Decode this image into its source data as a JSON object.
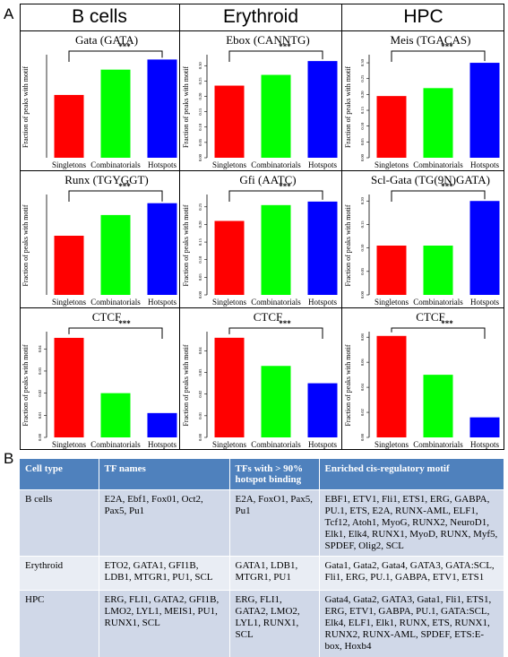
{
  "panel_a_label": "A",
  "panel_b_label": "B",
  "columns": [
    "B cells",
    "Erythroid",
    "HPC"
  ],
  "chart_data": [
    {
      "type": "bar",
      "title": "Gata (GATA)",
      "ylabel": "Fraction of peaks with motif",
      "categories": [
        "Singletons",
        "Combinatorials",
        "Hotspots"
      ],
      "values": [
        0.62,
        0.87,
        0.97
      ],
      "ylim": [
        0,
        1
      ],
      "colors": [
        "#ff0000",
        "#00ff00",
        "#0000ff"
      ],
      "significance": "***",
      "tick_labels": []
    },
    {
      "type": "bar",
      "title": "Ebox (CANNTG)",
      "ylabel": "Fraction of peaks with motif",
      "categories": [
        "Singletons",
        "Combinatorials",
        "Hotspots"
      ],
      "values": [
        0.235,
        0.27,
        0.315
      ],
      "ylim": [
        0,
        0.33
      ],
      "colors": [
        "#ff0000",
        "#00ff00",
        "#0000ff"
      ],
      "significance": "***",
      "tick_labels": [
        "0.00",
        "0.05",
        "0.10",
        "0.15",
        "0.20",
        "0.25",
        "0.30"
      ]
    },
    {
      "type": "bar",
      "title": "Meis (TGACAS)",
      "ylabel": "Fraction of peaks with motif",
      "categories": [
        "Singletons",
        "Combinatorials",
        "Hotspots"
      ],
      "values": [
        0.195,
        0.22,
        0.3
      ],
      "ylim": [
        0,
        0.32
      ],
      "colors": [
        "#ff0000",
        "#00ff00",
        "#0000ff"
      ],
      "significance": "***",
      "tick_labels": [
        "0.00",
        "0.05",
        "0.10",
        "0.15",
        "0.20",
        "0.25",
        "0.30"
      ]
    },
    {
      "type": "bar",
      "title": "Runx (TGYGGT)",
      "ylabel": "Fraction of peaks with motif",
      "categories": [
        "Singletons",
        "Combinatorials",
        "Hotspots"
      ],
      "values": [
        0.6,
        0.81,
        0.93
      ],
      "ylim": [
        0,
        1
      ],
      "colors": [
        "#ff0000",
        "#00ff00",
        "#0000ff"
      ],
      "significance": "***",
      "tick_labels": []
    },
    {
      "type": "bar",
      "title": "Gfi (AATC)",
      "ylabel": "Fraction of peaks with motif",
      "categories": [
        "Singletons",
        "Combinatorials",
        "Hotspots"
      ],
      "values": [
        0.21,
        0.255,
        0.265
      ],
      "ylim": [
        0,
        0.28
      ],
      "colors": [
        "#ff0000",
        "#00ff00",
        "#0000ff"
      ],
      "significance": "***",
      "tick_labels": [
        "0.00",
        "0.05",
        "0.10",
        "0.15",
        "0.20",
        "0.25"
      ]
    },
    {
      "type": "bar",
      "title": "Scl-Gata (TG(9N)GATA)",
      "ylabel": "Fraction of peaks with motif",
      "categories": [
        "Singletons",
        "Combinatorials",
        "Hotspots"
      ],
      "values": [
        0.105,
        0.105,
        0.2
      ],
      "ylim": [
        0,
        0.21
      ],
      "colors": [
        "#ff0000",
        "#00ff00",
        "#0000ff"
      ],
      "significance": "***",
      "tick_labels": [
        "0.00",
        "0.05",
        "0.10",
        "0.15",
        "0.20"
      ]
    },
    {
      "type": "bar",
      "title": "CTCF",
      "ylabel": "Fraction of peaks with motif",
      "categories": [
        "Singletons",
        "Combinatorials",
        "Hotspots"
      ],
      "values": [
        0.045,
        0.02,
        0.011
      ],
      "ylim": [
        0,
        0.047
      ],
      "colors": [
        "#ff0000",
        "#00ff00",
        "#0000ff"
      ],
      "significance": "***",
      "tick_labels": [
        "0.00",
        "0.01",
        "0.02",
        "0.03",
        "0.04"
      ]
    },
    {
      "type": "bar",
      "title": "CTCF",
      "ylabel": "Fraction of peaks with motif",
      "categories": [
        "Singletons",
        "Combinatorials",
        "Hotspots"
      ],
      "values": [
        0.046,
        0.033,
        0.025
      ],
      "ylim": [
        0,
        0.048
      ],
      "colors": [
        "#ff0000",
        "#00ff00",
        "#0000ff"
      ],
      "significance": "***",
      "tick_labels": [
        "0.00",
        "0.01",
        "0.02",
        "0.03",
        "0.04"
      ]
    },
    {
      "type": "bar",
      "title": "CTCF",
      "ylabel": "Fraction of peaks with motif",
      "categories": [
        "Singletons",
        "Combinatorials",
        "Hotspots"
      ],
      "values": [
        0.081,
        0.05,
        0.016
      ],
      "ylim": [
        0,
        0.083
      ],
      "colors": [
        "#ff0000",
        "#00ff00",
        "#0000ff"
      ],
      "significance": "***",
      "tick_labels": [
        "0.00",
        "0.02",
        "0.04",
        "0.06",
        "0.08"
      ]
    }
  ],
  "table": {
    "headers": [
      "Cell type",
      "TF names",
      "TFs with > 90% hotspot binding",
      "Enriched cis-regulatory motif"
    ],
    "rows": [
      [
        "B cells",
        "E2A, Ebf1, Fox01, Oct2, Pax5, Pu1",
        "E2A, FoxO1, Pax5, Pu1",
        "EBF1, ETV1, Fli1, ETS1, ERG, GABPA, PU.1,  ETS, E2A, RUNX-AML, ELF1, Tcf12, Atoh1, MyoG, RUNX2, NeuroD1, Elk1, Elk4, RUNX1, MyoD, RUNX, Myf5, SPDEF, Olig2, SCL"
      ],
      [
        "Erythroid",
        "ETO2, GATA1, GFI1B, LDB1, MTGR1, PU1, SCL",
        "GATA1, LDB1, MTGR1, PU1",
        "Gata1, Gata2, Gata4, GATA3, GATA:SCL, Fli1, ERG, PU.1, GABPA, ETV1, ETS1"
      ],
      [
        "HPC",
        "ERG, FLI1, GATA2, GFI1B, LMO2, LYL1, MEIS1, PU1, RUNX1, SCL",
        "ERG, FLI1, GATA2, LMO2, LYL1, RUNX1, SCL",
        "Gata4, Gata2, GATA3, Gata1, Fli1, ETS1, ERG, ETV1, GABPA, PU.1, GATA:SCL, Elk4, ELF1, Elk1, RUNX, ETS, RUNX1, RUNX2, RUNX-AML, SPDEF, ETS:E-box, Hoxb4"
      ]
    ]
  }
}
